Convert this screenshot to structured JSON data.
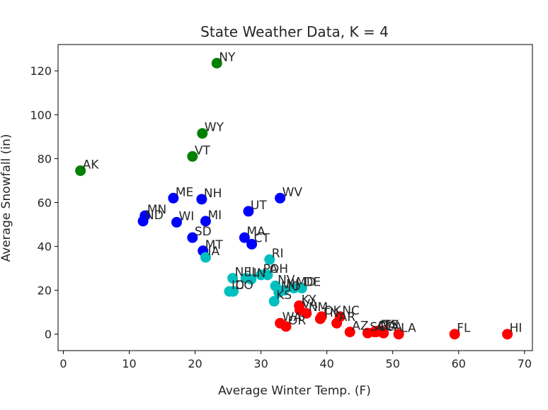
{
  "chart_data": {
    "type": "scatter",
    "title": "State Weather Data, K = 4",
    "xlabel": "Average Winter Temp. (F)",
    "ylabel": "Average Snowfall (in)",
    "xlim": [
      -0.8,
      71.2
    ],
    "ylim": [
      -7.5,
      132
    ],
    "xticks": [
      0,
      10,
      20,
      30,
      40,
      50,
      60,
      70
    ],
    "yticks": [
      0,
      20,
      40,
      60,
      80,
      100,
      120
    ],
    "grid": false,
    "legend": "none",
    "colors": {
      "cluster_0": "#008000",
      "cluster_1": "#0000ff",
      "cluster_2": "#00bfbf",
      "cluster_3": "#ff0000"
    },
    "points": [
      {
        "label": "NY",
        "x": 23.3,
        "y": 123.5,
        "cluster": "cluster_0"
      },
      {
        "label": "WY",
        "x": 21.1,
        "y": 91.5,
        "cluster": "cluster_0"
      },
      {
        "label": "VT",
        "x": 19.6,
        "y": 81.0,
        "cluster": "cluster_0"
      },
      {
        "label": "AK",
        "x": 2.6,
        "y": 74.5,
        "cluster": "cluster_0"
      },
      {
        "label": "WV",
        "x": 32.9,
        "y": 62.0,
        "cluster": "cluster_1"
      },
      {
        "label": "ME",
        "x": 16.7,
        "y": 62.0,
        "cluster": "cluster_1"
      },
      {
        "label": "NH",
        "x": 21.0,
        "y": 61.5,
        "cluster": "cluster_1"
      },
      {
        "label": "UT",
        "x": 28.1,
        "y": 56.0,
        "cluster": "cluster_1"
      },
      {
        "label": "MN",
        "x": 12.4,
        "y": 54.0,
        "cluster": "cluster_1"
      },
      {
        "label": "ND",
        "x": 12.1,
        "y": 51.5,
        "cluster": "cluster_1"
      },
      {
        "label": "WI",
        "x": 17.2,
        "y": 51.0,
        "cluster": "cluster_1"
      },
      {
        "label": "MI",
        "x": 21.6,
        "y": 51.5,
        "cluster": "cluster_1"
      },
      {
        "label": "SD",
        "x": 19.6,
        "y": 44.0,
        "cluster": "cluster_1"
      },
      {
        "label": "MA",
        "x": 27.5,
        "y": 44.0,
        "cluster": "cluster_1"
      },
      {
        "label": "CT",
        "x": 28.6,
        "y": 41.0,
        "cluster": "cluster_1"
      },
      {
        "label": "MT",
        "x": 21.2,
        "y": 38.0,
        "cluster": "cluster_1"
      },
      {
        "label": "IA",
        "x": 21.6,
        "y": 35.0,
        "cluster": "cluster_2"
      },
      {
        "label": "RI",
        "x": 31.3,
        "y": 34.0,
        "cluster": "cluster_2"
      },
      {
        "label": "PA",
        "x": 30.0,
        "y": 27.0,
        "cluster": "cluster_2"
      },
      {
        "label": "NE",
        "x": 25.7,
        "y": 25.5,
        "cluster": "cluster_2"
      },
      {
        "label": "IL",
        "x": 27.7,
        "y": 25.5,
        "cluster": "cluster_2"
      },
      {
        "label": "IN",
        "x": 28.5,
        "y": 25.0,
        "cluster": "cluster_2"
      },
      {
        "label": "OH",
        "x": 31.0,
        "y": 27.0,
        "cluster": "cluster_2"
      },
      {
        "label": "NV",
        "x": 32.2,
        "y": 22.0,
        "cluster": "cluster_2"
      },
      {
        "label": "MD",
        "x": 35.0,
        "y": 21.0,
        "cluster": "cluster_2"
      },
      {
        "label": "DE",
        "x": 36.2,
        "y": 21.0,
        "cluster": "cluster_2"
      },
      {
        "label": "NJ",
        "x": 33.5,
        "y": 20.0,
        "cluster": "cluster_2"
      },
      {
        "label": "MO",
        "x": 32.7,
        "y": 19.0,
        "cluster": "cluster_2"
      },
      {
        "label": "KS",
        "x": 32.0,
        "y": 15.0,
        "cluster": "cluster_2"
      },
      {
        "label": "ID",
        "x": 25.2,
        "y": 19.5,
        "cluster": "cluster_2"
      },
      {
        "label": "CO",
        "x": 25.8,
        "y": 19.5,
        "cluster": "cluster_2"
      },
      {
        "label": "KY",
        "x": 35.8,
        "y": 13.0,
        "cluster": "cluster_3"
      },
      {
        "label": "VA",
        "x": 35.9,
        "y": 11.0,
        "cluster": "cluster_3"
      },
      {
        "label": "NM",
        "x": 36.9,
        "y": 9.5,
        "cluster": "cluster_3"
      },
      {
        "label": "OK",
        "x": 39.2,
        "y": 8.0,
        "cluster": "cluster_3"
      },
      {
        "label": "NC",
        "x": 42.0,
        "y": 8.0,
        "cluster": "cluster_3"
      },
      {
        "label": "TN",
        "x": 39.0,
        "y": 7.0,
        "cluster": "cluster_3"
      },
      {
        "label": "AR",
        "x": 41.5,
        "y": 5.0,
        "cluster": "cluster_3"
      },
      {
        "label": "WA",
        "x": 32.9,
        "y": 5.0,
        "cluster": "cluster_3"
      },
      {
        "label": "OR",
        "x": 33.8,
        "y": 3.5,
        "cluster": "cluster_3"
      },
      {
        "label": "AZ",
        "x": 43.5,
        "y": 1.0,
        "cluster": "cluster_3"
      },
      {
        "label": "SC",
        "x": 46.2,
        "y": 0.5,
        "cluster": "cluster_3"
      },
      {
        "label": "GA",
        "x": 47.5,
        "y": 1.0,
        "cluster": "cluster_3"
      },
      {
        "label": "MS",
        "x": 47.8,
        "y": 1.5,
        "cluster": "cluster_3"
      },
      {
        "label": "TX",
        "x": 48.3,
        "y": 1.5,
        "cluster": "cluster_3"
      },
      {
        "label": "AL",
        "x": 47.2,
        "y": 1.0,
        "cluster": "cluster_3"
      },
      {
        "label": "CA",
        "x": 48.6,
        "y": 0.5,
        "cluster": "cluster_3"
      },
      {
        "label": "LA",
        "x": 50.9,
        "y": 0.0,
        "cluster": "cluster_3"
      },
      {
        "label": "FL",
        "x": 59.4,
        "y": 0.0,
        "cluster": "cluster_3"
      },
      {
        "label": "HI",
        "x": 67.4,
        "y": 0.0,
        "cluster": "cluster_3"
      }
    ]
  }
}
